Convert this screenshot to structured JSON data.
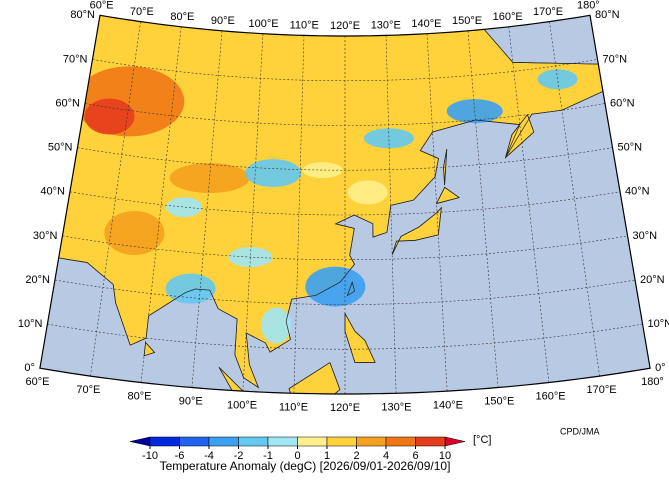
{
  "map": {
    "lon_labels": [
      "60°E",
      "70°E",
      "80°E",
      "90°E",
      "100°E",
      "110°E",
      "120°E",
      "130°E",
      "140°E",
      "150°E",
      "160°E",
      "170°E",
      "180°"
    ],
    "lat_labels": [
      "0°",
      "10°N",
      "20°N",
      "30°N",
      "40°N",
      "50°N",
      "60°N",
      "70°N",
      "80°N"
    ],
    "colorbar": {
      "ticks": [
        -10,
        -6,
        -4,
        -2,
        -1,
        0,
        1,
        2,
        4,
        6,
        10
      ],
      "colors": [
        "#0000a0",
        "#0028dc",
        "#1e64f0",
        "#3ca0f0",
        "#64c8f0",
        "#a0e6f5",
        "#fff08c",
        "#ffd23c",
        "#f5a01e",
        "#f07814",
        "#e63c1e",
        "#dc0028"
      ],
      "unit": "[°C]"
    },
    "title": "Temperature Anomaly (degC) [2026/09/01-2026/09/10]",
    "credit": "CPD/JMA"
  }
}
